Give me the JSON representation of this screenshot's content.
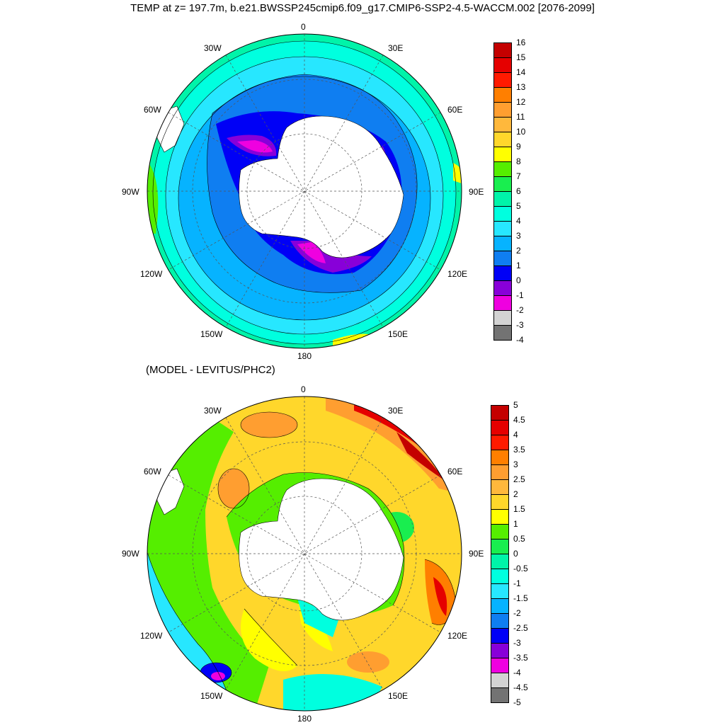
{
  "title": "TEMP at z= 197.7m, b.e21.BWSSP245cmip6.f09_g17.CMIP6-SSP2-4.5-WACCM.002 [2076-2099]",
  "subtitle": "(MODEL - LEVITUS/PHC2)",
  "longitude_labels": {
    "top": "0",
    "bottom": "180",
    "left": "90W",
    "right": "90E",
    "upper_left": "30W",
    "upper_right": "30E",
    "mid_left": "60W",
    "mid_right": "60E",
    "lower_left": "120W",
    "lower_right": "120E",
    "bottom_left": "150W",
    "bottom_right": "150E"
  },
  "top_colorbar": {
    "labels": [
      "16",
      "15",
      "14",
      "13",
      "12",
      "11",
      "10",
      "9",
      "8",
      "7",
      "6",
      "5",
      "4",
      "3",
      "2",
      "1",
      "0",
      "-1",
      "-2",
      "-3",
      "-4"
    ],
    "colors": [
      "#c40000",
      "#e50000",
      "#ff1a00",
      "#ff7f00",
      "#ff9e30",
      "#ffb83c",
      "#ffd72b",
      "#ffff00",
      "#55ee00",
      "#19ee4f",
      "#00f4a9",
      "#00ffdf",
      "#27e7ff",
      "#06b3ff",
      "#0f7ef1",
      "#0000f6",
      "#8800d9",
      "#ef00e0",
      "#d3d3d3",
      "#737373"
    ]
  },
  "bottom_colorbar": {
    "labels": [
      "5",
      "4.5",
      "4",
      "3.5",
      "3",
      "2.5",
      "2",
      "1.5",
      "1",
      "0.5",
      "0",
      "-0.5",
      "-1",
      "-1.5",
      "-2",
      "-2.5",
      "-3",
      "-3.5",
      "-4",
      "-4.5",
      "-5"
    ],
    "colors": [
      "#c40000",
      "#e50000",
      "#ff1a00",
      "#ff7f00",
      "#ff9e30",
      "#ffb83c",
      "#ffd72b",
      "#ffff00",
      "#55ee00",
      "#19ee4f",
      "#00f4a9",
      "#00ffdf",
      "#27e7ff",
      "#06b3ff",
      "#0f7ef1",
      "#0000f6",
      "#8800d9",
      "#ef00e0",
      "#d3d3d3",
      "#737373"
    ]
  }
}
